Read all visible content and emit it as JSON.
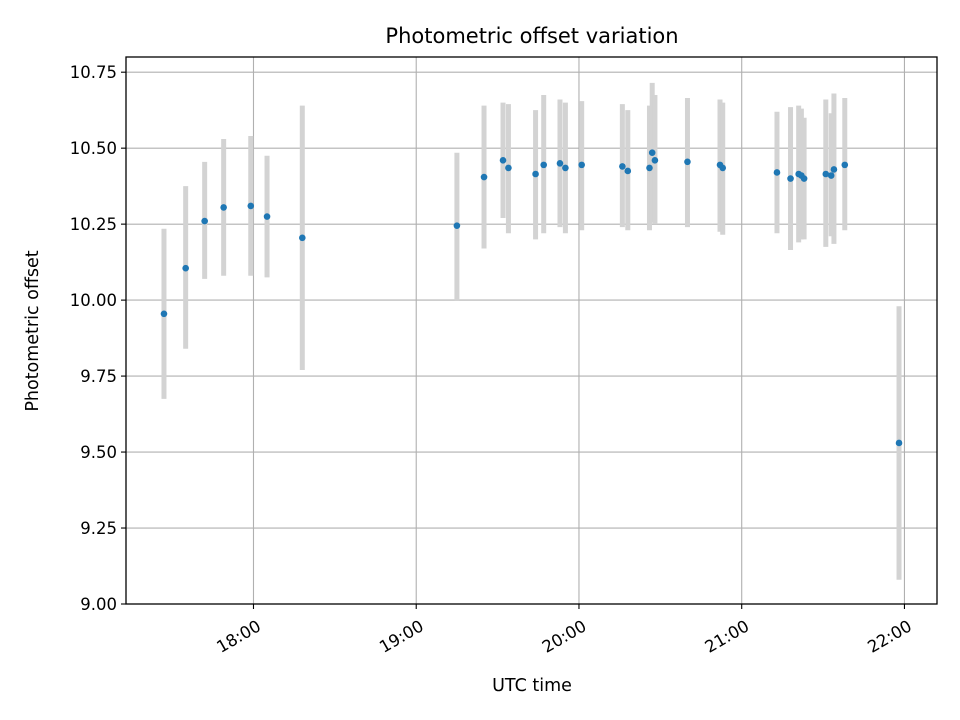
{
  "chart_data": {
    "type": "scatter",
    "title": "Photometric offset variation",
    "xlabel": "UTC time",
    "ylabel": "Photometric offset",
    "x_axis": {
      "type": "time",
      "range": [
        "17:13",
        "22:12"
      ],
      "ticks": [
        "18:00",
        "19:00",
        "20:00",
        "21:00",
        "22:00"
      ]
    },
    "y_axis": {
      "range": [
        9.0,
        10.8
      ],
      "ticks": [
        "9.00",
        "9.25",
        "9.50",
        "9.75",
        "10.00",
        "10.25",
        "10.50",
        "10.75"
      ]
    },
    "grid": true,
    "colors": {
      "point": "#1f77b4",
      "errorbar": "#d3d3d3",
      "grid": "#b0b0b0"
    },
    "points": [
      {
        "x": "17:27",
        "y": 9.955,
        "ylow": 9.675,
        "yhigh": 10.235
      },
      {
        "x": "17:35",
        "y": 10.105,
        "ylow": 9.84,
        "yhigh": 10.375
      },
      {
        "x": "17:42",
        "y": 10.26,
        "ylow": 10.07,
        "yhigh": 10.455
      },
      {
        "x": "17:49",
        "y": 10.305,
        "ylow": 10.08,
        "yhigh": 10.53
      },
      {
        "x": "17:59",
        "y": 10.31,
        "ylow": 10.08,
        "yhigh": 10.54
      },
      {
        "x": "18:05",
        "y": 10.275,
        "ylow": 10.075,
        "yhigh": 10.475
      },
      {
        "x": "18:18",
        "y": 10.205,
        "ylow": 9.77,
        "yhigh": 10.64
      },
      {
        "x": "19:15",
        "y": 10.245,
        "ylow": 10.0,
        "yhigh": 10.485
      },
      {
        "x": "19:25",
        "y": 10.405,
        "ylow": 10.17,
        "yhigh": 10.64
      },
      {
        "x": "19:32",
        "y": 10.46,
        "ylow": 10.27,
        "yhigh": 10.65
      },
      {
        "x": "19:34",
        "y": 10.435,
        "ylow": 10.22,
        "yhigh": 10.645
      },
      {
        "x": "19:44",
        "y": 10.415,
        "ylow": 10.2,
        "yhigh": 10.625
      },
      {
        "x": "19:47",
        "y": 10.445,
        "ylow": 10.22,
        "yhigh": 10.675
      },
      {
        "x": "19:53",
        "y": 10.45,
        "ylow": 10.24,
        "yhigh": 10.66
      },
      {
        "x": "19:55",
        "y": 10.435,
        "ylow": 10.22,
        "yhigh": 10.65
      },
      {
        "x": "20:01",
        "y": 10.445,
        "ylow": 10.23,
        "yhigh": 10.655
      },
      {
        "x": "20:16",
        "y": 10.44,
        "ylow": 10.24,
        "yhigh": 10.645
      },
      {
        "x": "20:18",
        "y": 10.425,
        "ylow": 10.23,
        "yhigh": 10.625
      },
      {
        "x": "20:26",
        "y": 10.435,
        "ylow": 10.23,
        "yhigh": 10.64
      },
      {
        "x": "20:27",
        "y": 10.485,
        "ylow": 10.255,
        "yhigh": 10.715
      },
      {
        "x": "20:28",
        "y": 10.46,
        "ylow": 10.25,
        "yhigh": 10.675
      },
      {
        "x": "20:40",
        "y": 10.455,
        "ylow": 10.24,
        "yhigh": 10.665
      },
      {
        "x": "20:52",
        "y": 10.445,
        "ylow": 10.225,
        "yhigh": 10.66
      },
      {
        "x": "20:53",
        "y": 10.435,
        "ylow": 10.215,
        "yhigh": 10.65
      },
      {
        "x": "21:13",
        "y": 10.42,
        "ylow": 10.22,
        "yhigh": 10.62
      },
      {
        "x": "21:18",
        "y": 10.4,
        "ylow": 10.165,
        "yhigh": 10.635
      },
      {
        "x": "21:21",
        "y": 10.415,
        "ylow": 10.19,
        "yhigh": 10.64
      },
      {
        "x": "21:22",
        "y": 10.41,
        "ylow": 10.2,
        "yhigh": 10.63
      },
      {
        "x": "21:23",
        "y": 10.4,
        "ylow": 10.2,
        "yhigh": 10.6
      },
      {
        "x": "21:31",
        "y": 10.415,
        "ylow": 10.175,
        "yhigh": 10.66
      },
      {
        "x": "21:33",
        "y": 10.41,
        "ylow": 10.21,
        "yhigh": 10.615
      },
      {
        "x": "21:34",
        "y": 10.43,
        "ylow": 10.185,
        "yhigh": 10.68
      },
      {
        "x": "21:38",
        "y": 10.445,
        "ylow": 10.23,
        "yhigh": 10.665
      },
      {
        "x": "21:58",
        "y": 9.53,
        "ylow": 9.08,
        "yhigh": 9.98
      }
    ]
  }
}
